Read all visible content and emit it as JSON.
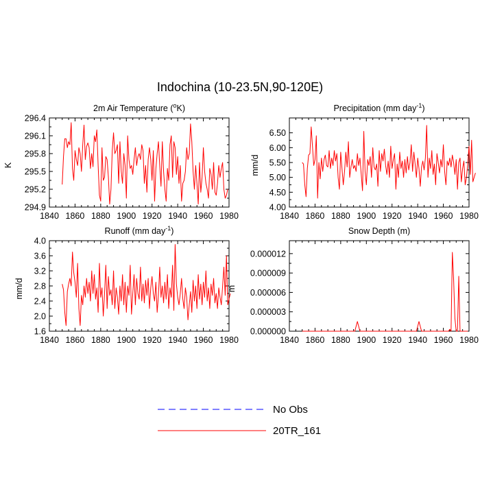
{
  "title": "Indochina (10-23.5N,90-120E)",
  "legend": [
    {
      "label": "No Obs",
      "color": "#0000ff",
      "dashed": true
    },
    {
      "label": "20TR_161",
      "color": "#ff0000",
      "dashed": false
    }
  ],
  "chart_data": [
    {
      "type": "line",
      "title_main": "2m Air Temperature (",
      "title_sup": "o",
      "title_end": "K)",
      "ylabel": "K",
      "xlim": [
        1840,
        1980
      ],
      "ylim": [
        294.9,
        296.4
      ],
      "xticks": [
        1840,
        1860,
        1880,
        1900,
        1920,
        1940,
        1960,
        1980
      ],
      "yticks": [
        294.9,
        295.2,
        295.5,
        295.8,
        296.1,
        296.4
      ],
      "ytick_labels": [
        "294.9",
        "295.2",
        "295.5",
        "295.8",
        "296.1",
        "296.4"
      ],
      "x_start": 1850,
      "series": [
        {
          "name": "20TR_161",
          "values": [
            295.28,
            295.75,
            296.05,
            296.05,
            295.9,
            296.0,
            295.95,
            296.32,
            295.55,
            295.35,
            295.85,
            295.7,
            295.6,
            295.9,
            295.8,
            295.5,
            295.95,
            296.28,
            295.7,
            295.92,
            295.98,
            295.9,
            295.55,
            295.8,
            295.58,
            296.1,
            296.0,
            296.2,
            295.6,
            295.1,
            295.0,
            295.9,
            295.35,
            295.4,
            295.75,
            295.7,
            295.4,
            294.95,
            295.2,
            295.85,
            296.15,
            295.8,
            295.85,
            295.95,
            295.3,
            296.0,
            295.5,
            295.3,
            295.8,
            295.6,
            295.05,
            296.1,
            295.7,
            295.55,
            295.6,
            295.45,
            295.7,
            295.9,
            295.6,
            295.75,
            295.8,
            295.7,
            295.95,
            295.85,
            295.3,
            295.6,
            295.15,
            295.7,
            295.9,
            295.7,
            295.35,
            295.85,
            295.0,
            295.55,
            295.8,
            296.0,
            295.6,
            295.25,
            296.0,
            295.5,
            295.2,
            295.0,
            295.55,
            295.35,
            295.95,
            296.1,
            295.4,
            296.0,
            295.9,
            295.45,
            295.75,
            295.3,
            295.6,
            295.0,
            295.3,
            295.35,
            295.5,
            295.9,
            295.7,
            295.8,
            296.3,
            296.0,
            295.5,
            295.2,
            295.6,
            295.3,
            294.95,
            295.65,
            295.15,
            295.4,
            295.9,
            295.5,
            295.3,
            295.2,
            295.05,
            295.55,
            295.45,
            295.2,
            295.65,
            295.15,
            295.1,
            295.3,
            295.6,
            295.4,
            295.55,
            295.65,
            295.2,
            295.05,
            295.1,
            295.2
          ]
        }
      ]
    },
    {
      "type": "line",
      "title_main": "Precipitation (mm day",
      "title_sup": "-1",
      "title_end": ")",
      "ylabel": "mm/d",
      "xlim": [
        1840,
        1980
      ],
      "ylim": [
        4.0,
        7.0
      ],
      "xticks": [
        1840,
        1860,
        1880,
        1900,
        1920,
        1940,
        1960,
        1980
      ],
      "yticks": [
        4.0,
        4.5,
        5.0,
        5.5,
        6.0,
        6.5
      ],
      "ytick_labels": [
        "4.00",
        "4.50",
        "5.00",
        "5.50",
        "6.00",
        "6.50"
      ],
      "x_start": 1850,
      "series": [
        {
          "name": "20TR_161",
          "values": [
            5.5,
            5.45,
            4.75,
            4.35,
            5.3,
            5.75,
            5.8,
            6.7,
            6.05,
            5.4,
            5.6,
            6.4,
            4.3,
            5.5,
            4.95,
            5.65,
            5.2,
            5.6,
            5.75,
            5.4,
            5.35,
            5.9,
            5.3,
            5.65,
            5.4,
            5.9,
            5.55,
            5.8,
            5.0,
            4.6,
            5.85,
            5.3,
            4.75,
            5.2,
            5.85,
            5.35,
            6.2,
            5.0,
            5.35,
            5.6,
            5.3,
            5.4,
            5.2,
            5.8,
            5.4,
            5.65,
            5.1,
            4.55,
            6.55,
            5.2,
            4.75,
            5.6,
            5.4,
            5.7,
            5.0,
            6.0,
            5.35,
            5.25,
            5.45,
            4.7,
            5.9,
            5.2,
            5.8,
            5.55,
            5.95,
            5.4,
            5.1,
            5.55,
            5.0,
            6.05,
            5.3,
            5.6,
            5.8,
            4.6,
            5.45,
            5.0,
            5.85,
            5.3,
            5.55,
            5.0,
            5.6,
            5.15,
            5.7,
            5.25,
            5.5,
            6.1,
            5.2,
            5.85,
            5.45,
            5.0,
            5.65,
            5.3,
            4.7,
            5.35,
            5.55,
            5.25,
            5.65,
            6.75,
            5.0,
            5.65,
            5.3,
            5.9,
            5.1,
            5.45,
            4.75,
            5.8,
            5.5,
            5.15,
            5.6,
            5.35,
            6.1,
            5.2,
            4.75,
            5.55,
            5.4,
            5.65,
            5.35,
            5.75,
            5.5,
            5.1,
            5.6,
            4.6,
            5.5,
            5.65,
            4.85,
            5.3,
            5.55,
            4.75,
            5.0,
            5.45,
            6.05,
            5.1,
            6.25,
            4.85,
            5.0,
            5.15
          ]
        }
      ]
    },
    {
      "type": "line",
      "title_main": "Runoff (mm day",
      "title_sup": "-1",
      "title_end": ")",
      "ylabel": "mm/d",
      "xlim": [
        1840,
        1980
      ],
      "ylim": [
        1.6,
        4.0
      ],
      "xticks": [
        1840,
        1860,
        1880,
        1900,
        1920,
        1940,
        1960,
        1980
      ],
      "yticks": [
        1.6,
        2.0,
        2.4,
        2.8,
        3.2,
        3.6,
        4.0
      ],
      "ytick_labels": [
        "1.6",
        "2.0",
        "2.4",
        "2.8",
        "3.2",
        "3.6",
        "4.0"
      ],
      "x_start": 1850,
      "series": [
        {
          "name": "20TR_161",
          "values": [
            2.85,
            2.7,
            2.1,
            1.75,
            2.65,
            2.85,
            3.0,
            2.8,
            3.7,
            3.15,
            2.9,
            2.5,
            3.4,
            2.2,
            1.75,
            2.55,
            2.3,
            2.8,
            2.5,
            3.0,
            2.6,
            2.9,
            2.4,
            3.2,
            2.6,
            3.1,
            2.45,
            2.75,
            2.1,
            3.4,
            2.5,
            2.75,
            2.0,
            2.6,
            3.35,
            2.2,
            3.05,
            2.55,
            2.7,
            2.3,
            3.2,
            2.2,
            2.75,
            2.5,
            2.05,
            2.8,
            2.4,
            3.1,
            2.3,
            2.9,
            2.1,
            2.8,
            2.55,
            3.35,
            2.05,
            2.6,
            3.1,
            2.3,
            3.0,
            2.6,
            2.45,
            3.3,
            2.4,
            2.85,
            2.35,
            2.95,
            2.55,
            3.0,
            2.2,
            2.75,
            3.05,
            2.6,
            2.4,
            2.9,
            2.1,
            2.55,
            3.3,
            2.5,
            2.8,
            2.35,
            2.9,
            2.45,
            3.1,
            2.2,
            2.75,
            2.5,
            3.35,
            2.15,
            3.9,
            2.85,
            2.5,
            2.3,
            2.6,
            3.0,
            2.45,
            2.2,
            2.75,
            2.5,
            1.9,
            2.3,
            2.65,
            2.1,
            2.95,
            2.4,
            2.8,
            2.2,
            3.1,
            2.45,
            2.85,
            2.3,
            2.9,
            2.5,
            3.2,
            2.4,
            2.75,
            2.2,
            2.85,
            2.55,
            3.0,
            2.35,
            2.6,
            2.2,
            2.75,
            2.5,
            2.3,
            2.8,
            3.3,
            2.55,
            3.6,
            2.3,
            2.45,
            2.6
          ]
        }
      ]
    },
    {
      "type": "line",
      "title_main": "Snow Depth (m)",
      "title_sup": "",
      "title_end": "",
      "ylabel": "m",
      "xlim": [
        1840,
        1980
      ],
      "ylim": [
        0,
        1.4e-05
      ],
      "xticks": [
        1840,
        1860,
        1880,
        1900,
        1920,
        1940,
        1960,
        1980
      ],
      "yticks": [
        0,
        3e-06,
        6e-06,
        9e-06,
        1.2e-05
      ],
      "ytick_labels": [
        "0.000000",
        "0.000003",
        "0.000006",
        "0.000009",
        "0.000012"
      ],
      "x_start": 1850,
      "series": [
        {
          "name": "20TR_161",
          "points": [
            [
              1850,
              0
            ],
            [
              1891,
              0
            ],
            [
              1893,
              1.5e-06
            ],
            [
              1895,
              0
            ],
            [
              1939,
              0
            ],
            [
              1941,
              1.5e-06
            ],
            [
              1943,
              0
            ],
            [
              1964,
              0
            ],
            [
              1965,
              3e-07
            ],
            [
              1966,
              0
            ],
            [
              1967,
              1.22e-05
            ],
            [
              1968,
              8e-06
            ],
            [
              1969,
              2e-06
            ],
            [
              1970,
              0
            ],
            [
              1971,
              0
            ],
            [
              1972,
              8.5e-06
            ],
            [
              1973,
              0
            ],
            [
              1979,
              0
            ]
          ]
        }
      ]
    }
  ]
}
